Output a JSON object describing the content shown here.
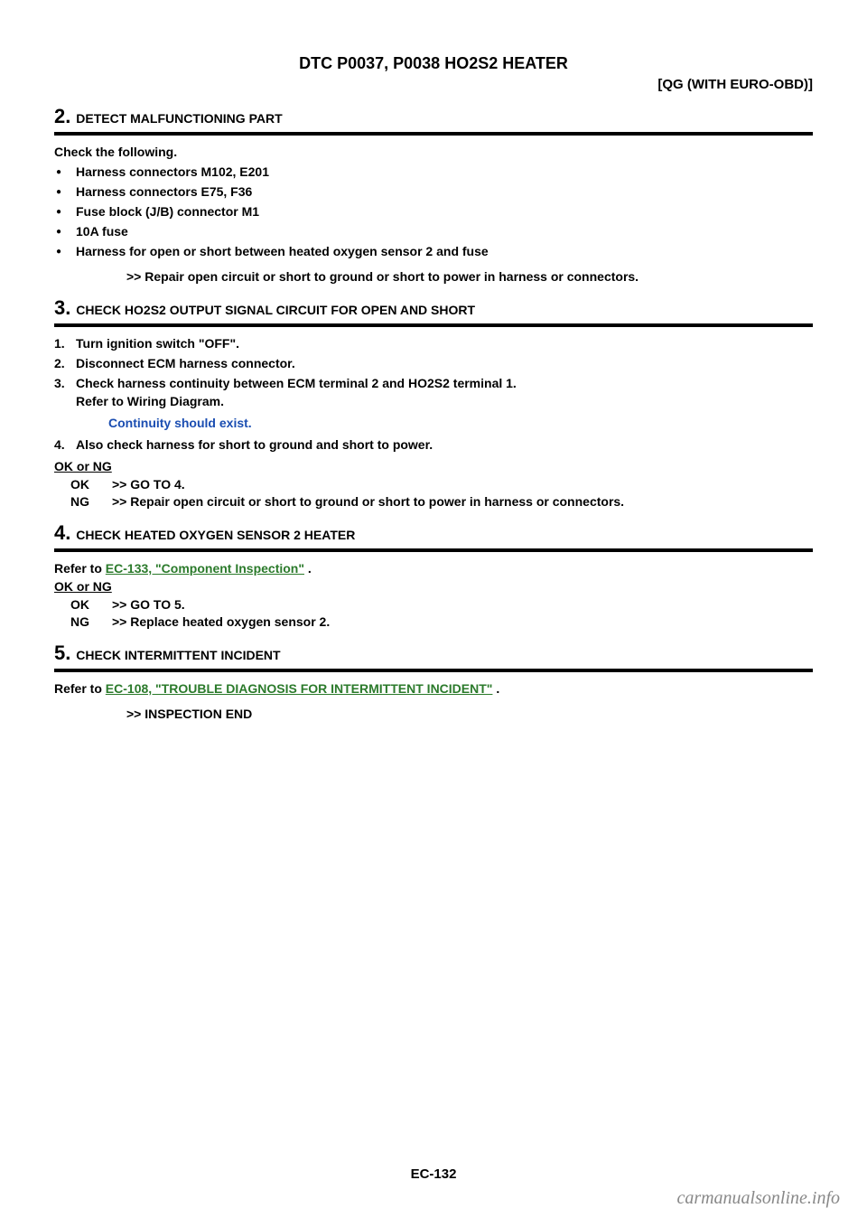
{
  "header": {
    "title": "DTC P0037, P0038 HO2S2 HEATER",
    "subtitle_right": "[QG (WITH EURO-OBD)]"
  },
  "steps": [
    {
      "num": "2.",
      "heading": "DETECT MALFUNCTIONING PART",
      "intro": "Check the following.",
      "bullets": [
        "Harness connectors M102, E201",
        "Harness connectors E75, F36",
        "Fuse block (J/B) connector M1",
        "10A fuse",
        "Harness for open or short between heated oxygen sensor 2 and fuse"
      ],
      "action": ">> Repair open circuit or short to ground or short to power in harness or connectors."
    },
    {
      "num": "3.",
      "heading": "CHECK HO2S2 OUTPUT SIGNAL CIRCUIT FOR OPEN AND SHORT",
      "numbered": [
        {
          "n": "1.",
          "text": "Turn ignition switch \"OFF\"."
        },
        {
          "n": "2.",
          "text": "Disconnect ECM harness connector."
        },
        {
          "n": "3.",
          "text": "Check harness continuity between ECM terminal 2 and HO2S2 terminal 1.",
          "sub": "Refer to Wiring Diagram."
        }
      ],
      "blue": "Continuity should exist.",
      "numbered2": [
        {
          "n": "4.",
          "text": "Also check harness for short to ground and short to power."
        }
      ],
      "okng_header": "OK or NG",
      "okng": [
        {
          "label": "OK",
          "text": ">> GO TO 4."
        },
        {
          "label": "NG",
          "text": ">> Repair open circuit or short to ground or short to power in harness or connectors."
        }
      ]
    },
    {
      "num": "4.",
      "heading": "CHECK HEATED OXYGEN SENSOR 2 HEATER",
      "refer_prefix": "Refer to ",
      "refer_link": "EC-133, \"Component Inspection\"",
      "refer_suffix": " .",
      "okng_header": "OK or NG",
      "okng": [
        {
          "label": "OK",
          "text": ">> GO TO 5."
        },
        {
          "label": "NG",
          "text": ">> Replace heated oxygen sensor 2."
        }
      ]
    },
    {
      "num": "5.",
      "heading": "CHECK INTERMITTENT INCIDENT",
      "refer_prefix": "Refer to ",
      "refer_link": "EC-108, \"TROUBLE DIAGNOSIS FOR INTERMITTENT INCIDENT\"",
      "refer_suffix": " .",
      "action": ">> INSPECTION END"
    }
  ],
  "page_number": "EC-132",
  "watermark": "carmanualsonline.info",
  "colors": {
    "link_green": "#2b7a2b",
    "blue": "#1a4db1",
    "watermark_gray": "#888888"
  }
}
